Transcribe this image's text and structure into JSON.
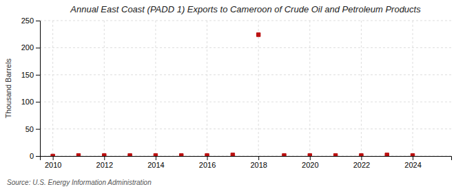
{
  "chart_data": {
    "type": "scatter",
    "title": "Annual East Coast (PADD 1) Exports to Cameroon of Crude Oil and Petroleum Products",
    "y_label": "Thousand Barrels",
    "source": "Source: U.S. Energy Information Administration",
    "x": [
      2010,
      2011,
      2012,
      2013,
      2014,
      2015,
      2016,
      2017,
      2018,
      2019,
      2020,
      2021,
      2022,
      2023,
      2024
    ],
    "values": [
      0,
      1,
      1,
      1,
      1,
      1,
      1,
      2,
      224,
      1,
      1,
      1,
      1,
      2,
      1
    ],
    "color": "#bb1111",
    "marker": "square",
    "xlim": [
      2009.5,
      2025.5
    ],
    "ylim": [
      0,
      250
    ],
    "xticks": [
      2010,
      2012,
      2014,
      2016,
      2018,
      2020,
      2022,
      2024
    ],
    "yticks": [
      0,
      50,
      100,
      150,
      200,
      250
    ],
    "grid": true
  }
}
